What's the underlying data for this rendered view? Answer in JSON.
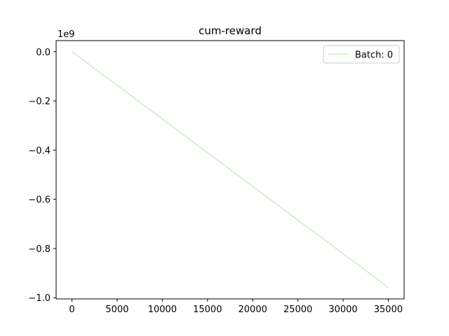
{
  "chart_data": {
    "type": "line",
    "title": "cum-reward",
    "xlabel": "",
    "ylabel": "",
    "y_offset_label": "1e9",
    "xlim": [
      -1750,
      36750
    ],
    "ylim": [
      -1.005,
      0.045
    ],
    "x_ticks": [
      0,
      5000,
      10000,
      15000,
      20000,
      25000,
      30000,
      35000
    ],
    "x_tick_labels": [
      "0",
      "5000",
      "10000",
      "15000",
      "20000",
      "25000",
      "30000",
      "35000"
    ],
    "y_ticks": [
      0.0,
      -0.2,
      -0.4,
      -0.6,
      -0.8,
      -1.0
    ],
    "y_tick_labels": [
      "0.0",
      "−0.2",
      "−0.4",
      "−0.6",
      "−0.8",
      "−1.0"
    ],
    "grid": false,
    "legend_position": "top-right",
    "series": [
      {
        "name": "Batch: 0",
        "color": "#ccebc5",
        "x": [
          0,
          35000
        ],
        "y": [
          0.0,
          -0.958
        ]
      }
    ]
  }
}
